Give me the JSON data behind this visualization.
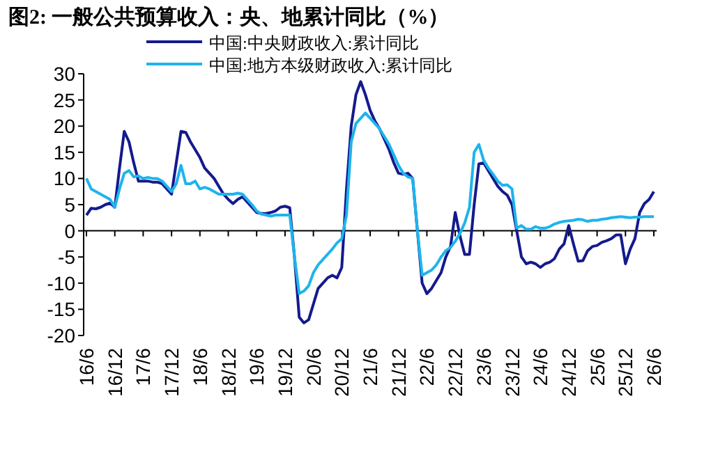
{
  "chart_data": {
    "type": "line",
    "title": "图2:  一般公共预算收入：央、地累计同比（%）",
    "categories": [
      "16/6",
      null,
      null,
      null,
      null,
      null,
      "16/12",
      null,
      null,
      null,
      null,
      null,
      "17/6",
      null,
      null,
      null,
      null,
      null,
      "17/12",
      null,
      null,
      null,
      null,
      null,
      "18/6",
      null,
      null,
      null,
      null,
      null,
      "18/12",
      null,
      null,
      null,
      null,
      null,
      "19/6",
      null,
      null,
      null,
      null,
      null,
      "19/12",
      null,
      null,
      null,
      null,
      null,
      "20/6",
      null,
      null,
      null,
      null,
      null,
      "20/12",
      null,
      null,
      null,
      null,
      null,
      "21/6",
      null,
      null,
      null,
      null,
      null,
      "21/12",
      null,
      null,
      null,
      null,
      null,
      "22/6",
      null,
      null,
      null,
      null,
      null,
      "22/12",
      null,
      null,
      null,
      null,
      null,
      "23/6",
      null,
      null,
      null,
      null,
      null,
      "23/12",
      null,
      null,
      null,
      null,
      null,
      "24/6",
      null,
      null,
      null,
      null,
      null,
      "24/12",
      null,
      null,
      null,
      null,
      null,
      "25/6",
      null,
      null,
      null,
      null,
      null,
      "25/12",
      null,
      null,
      null,
      null,
      null,
      "26/6"
    ],
    "series": [
      {
        "name": "中国:中央财政收入:累计同比",
        "color": "#141a8c",
        "values": [
          3,
          4.3,
          4.2,
          4.5,
          5,
          5.3,
          4.5,
          12,
          19,
          17,
          13,
          9.5,
          9.5,
          9.5,
          9.3,
          9.3,
          9,
          8,
          7,
          13,
          19,
          18.8,
          17,
          15.5,
          14,
          12,
          11,
          10,
          8.5,
          7,
          6,
          5.2,
          6,
          6.5,
          5.5,
          4.5,
          3.5,
          3.3,
          3.3,
          3.5,
          3.8,
          4.5,
          4.7,
          4.4,
          -5,
          -16.5,
          -17.6,
          -17,
          -14,
          -11,
          -10,
          -9,
          -8.5,
          -9,
          -7,
          8,
          20,
          26,
          28.5,
          26,
          23,
          21,
          19.5,
          17.5,
          15.5,
          13,
          11,
          10.8,
          11,
          10,
          0,
          -10,
          -12,
          -11,
          -9.5,
          -8,
          -5,
          -3,
          3.5,
          -1,
          -4.5,
          -4.5,
          5,
          12.8,
          13,
          11.5,
          10,
          8.5,
          7.5,
          6.8,
          5,
          0,
          -5,
          -6.3,
          -6,
          -6.3,
          -7,
          -6.3,
          -6,
          -5.3,
          -3.5,
          -2.5,
          1,
          -2.5,
          -5.8,
          -5.7,
          -3.8,
          -3,
          -2.8,
          -2.2,
          -1.9,
          -1.5,
          -0.8,
          -0.8,
          -6.3,
          -3.5,
          -1.5,
          3.5,
          5.2,
          6,
          7.5
        ]
      },
      {
        "name": "中国:地方本级财政收入:累计同比",
        "color": "#1eb4ec",
        "values": [
          10,
          8,
          7.5,
          7,
          6.5,
          6,
          4.5,
          8,
          11,
          11.5,
          10.3,
          10.5,
          10,
          10.2,
          10,
          10,
          9.5,
          8.5,
          7.5,
          9,
          12.5,
          9,
          9,
          9.5,
          8,
          8.3,
          8,
          7.5,
          7,
          7,
          7,
          7,
          7.2,
          7,
          6,
          5,
          3.8,
          3.2,
          3,
          2.8,
          3,
          3,
          3,
          3,
          -5,
          -12,
          -11.5,
          -10.5,
          -8,
          -6.5,
          -5.5,
          -4.5,
          -3.5,
          -2.3,
          -1.5,
          3,
          17,
          20.5,
          21.5,
          22.5,
          21.5,
          20.5,
          19.5,
          18,
          16.5,
          14.5,
          12.5,
          11,
          10.3,
          10,
          0,
          -8.5,
          -8,
          -7.5,
          -6.5,
          -5,
          -3.8,
          -3.2,
          -2,
          -0.5,
          1.5,
          4.5,
          15,
          16.5,
          13.5,
          12,
          10.8,
          9.5,
          8.7,
          8.8,
          8,
          0.5,
          1,
          0.3,
          0.3,
          0.8,
          0.5,
          0.5,
          0.8,
          1.3,
          1.6,
          1.8,
          1.9,
          2,
          2.2,
          2.1,
          1.8,
          2,
          2,
          2.2,
          2.3,
          2.5,
          2.6,
          2.7,
          2.6,
          2.5,
          2.6,
          2.6,
          2.7,
          2.7,
          2.7
        ]
      }
    ],
    "ylim": [
      -20,
      30
    ],
    "yticks": [
      -20,
      -15,
      -10,
      -5,
      0,
      5,
      10,
      15,
      20,
      25,
      30
    ],
    "legend": "top",
    "marker": "none",
    "line_style": "solid"
  }
}
